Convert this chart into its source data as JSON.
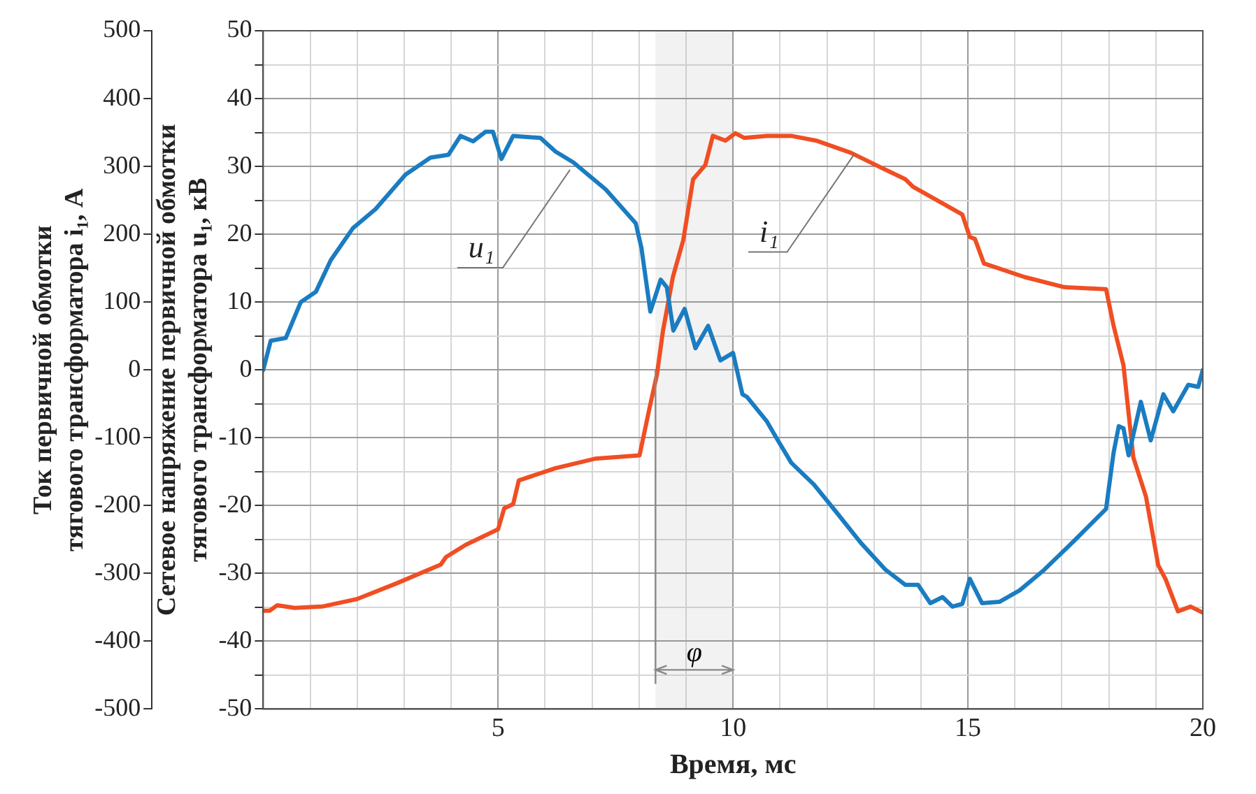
{
  "chart_data": {
    "type": "line",
    "xlabel": "Время, мс",
    "ylabel": "Ток первичной обмотки тягового трансформатора i₁, А",
    "y2label": "Сетевое напряжение первичной обмотки тягового трансформатора u₁, кВ",
    "xlim": [
      0,
      20
    ],
    "xticks": [
      {
        "value": 0,
        "label": null
      },
      {
        "value": 1,
        "label": null
      },
      {
        "value": 2,
        "label": null
      },
      {
        "value": 3,
        "label": null
      },
      {
        "value": 4,
        "label": null
      },
      5,
      {
        "value": 6,
        "label": null
      },
      {
        "value": 7,
        "label": null
      },
      {
        "value": 8,
        "label": null
      },
      {
        "value": 9,
        "label": null
      },
      10,
      {
        "value": 11,
        "label": null
      },
      {
        "value": 12,
        "label": null
      },
      {
        "value": 13,
        "label": null
      },
      {
        "value": 14,
        "label": null
      },
      15,
      {
        "value": 16,
        "label": null
      },
      {
        "value": 17,
        "label": null
      },
      {
        "value": 18,
        "label": null
      },
      {
        "value": 19,
        "label": null
      },
      20
    ],
    "ylim": [
      -500,
      500
    ],
    "yticks": [
      -500,
      -400,
      -300,
      -200,
      -100,
      0,
      100,
      200,
      300,
      400,
      500
    ],
    "y2lim": [
      -50,
      50
    ],
    "y2ticks": [
      -50,
      {
        "value": -45,
        "label": null
      },
      -40,
      {
        "value": -35,
        "label": null
      },
      -30,
      {
        "value": -25,
        "label": null
      },
      -20,
      {
        "value": -15,
        "label": null
      },
      -10,
      {
        "value": -5,
        "label": null
      },
      0,
      {
        "value": 5,
        "label": null
      },
      10,
      {
        "value": 15,
        "label": null
      },
      20,
      {
        "value": 25,
        "label": null
      },
      30,
      {
        "value": 35,
        "label": null
      },
      40,
      {
        "value": 45,
        "label": null
      },
      50
    ],
    "grid": true,
    "legend": false,
    "marker": "none",
    "line_style": "solid",
    "series": [
      {
        "color": "#1a7cc1",
        "axis": "y2",
        "x": [
          0,
          0.16,
          0.48,
          0.8,
          1.12,
          1.44,
          1.91,
          2.39,
          3.03,
          3.56,
          3.94,
          4.2,
          4.47,
          4.73,
          4.89,
          5.07,
          5.32,
          5.9,
          6.22,
          6.6,
          7.29,
          7.93,
          8.05,
          8.24,
          8.46,
          8.59,
          8.73,
          8.97,
          9.2,
          9.47,
          9.73,
          10.0,
          10.2,
          10.3,
          10.72,
          10.93,
          11.24,
          11.72,
          12.19,
          12.72,
          13.25,
          13.67,
          13.94,
          14.2,
          14.46,
          14.67,
          14.88,
          15.04,
          15.3,
          15.67,
          16.1,
          16.62,
          17.26,
          17.94,
          18.1,
          18.21,
          18.31,
          18.42,
          18.68,
          18.89,
          19.16,
          19.37,
          19.69,
          19.9,
          20
        ],
        "values": [
          0,
          4.3,
          4.7,
          10,
          11.5,
          16.2,
          20.9,
          23.7,
          28.8,
          31.3,
          31.7,
          34.5,
          33.7,
          35.1,
          35.1,
          31.1,
          34.5,
          34.2,
          32.2,
          30.6,
          26.6,
          21.6,
          18,
          8.6,
          13.3,
          12.2,
          5.8,
          9,
          3.2,
          6.5,
          1.4,
          2.5,
          -3.6,
          -4,
          -7.6,
          -10.1,
          -13.7,
          -16.9,
          -20.9,
          -25.5,
          -29.5,
          -31.7,
          -31.7,
          -34.4,
          -33.5,
          -34.9,
          -34.5,
          -30.8,
          -34.4,
          -34.2,
          -32.5,
          -29.5,
          -25.2,
          -20.5,
          -12.2,
          -8.3,
          -8.6,
          -12.6,
          -4.7,
          -10.4,
          -3.6,
          -6.1,
          -2.2,
          -2.5,
          0
        ]
      },
      {
        "color": "#f04e23",
        "x": [
          0,
          0.14,
          0.3,
          0.67,
          1.25,
          1.99,
          2.83,
          3.78,
          3.89,
          4.31,
          5,
          5.13,
          5.32,
          5.44,
          6.22,
          7.06,
          8.01,
          8.22,
          8.38,
          8.51,
          8.72,
          8.94,
          9.15,
          9.41,
          9.57,
          9.84,
          10.05,
          10.24,
          10.72,
          11.24,
          11.77,
          12.51,
          13.04,
          13.67,
          13.83,
          14.88,
          15.04,
          15.15,
          15.34,
          16.2,
          17.05,
          17.94,
          18.1,
          18.31,
          18.52,
          18.79,
          19.05,
          19.21,
          19.47,
          19.74,
          20
        ],
        "values": [
          -355,
          -355,
          -347,
          -351,
          -349,
          -338,
          -315,
          -287,
          -276,
          -258,
          -235,
          -204,
          -198,
          -163,
          -145,
          -131,
          -126,
          -57,
          -7,
          58,
          137,
          191,
          281,
          302,
          345,
          338,
          349,
          342,
          345,
          345,
          338,
          320,
          302,
          281,
          270,
          229,
          196,
          193,
          157,
          137,
          122,
          119,
          65,
          7,
          -129,
          -187,
          -288,
          -309,
          -356,
          -349,
          -358
        ]
      }
    ],
    "annotations": [
      {
        "text": "u₁",
        "x": 6.53,
        "y": 295
      },
      {
        "text": "i₁",
        "x": 12.58,
        "y": 318
      }
    ],
    "bands": [
      {
        "axis": "x",
        "from": 8.35,
        "to": 10,
        "label": "φ"
      }
    ]
  }
}
